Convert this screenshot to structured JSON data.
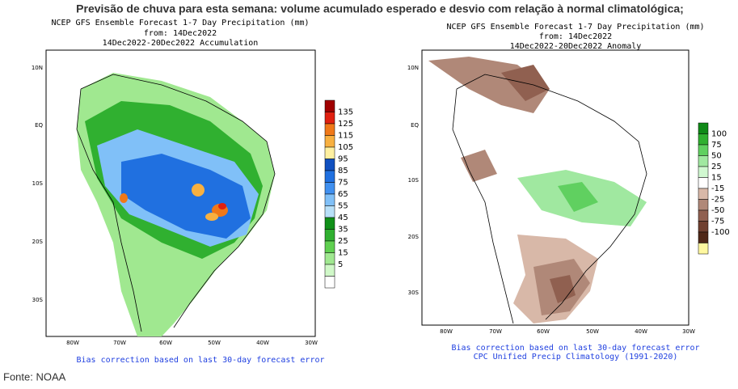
{
  "title": "Previsão de chuva para esta semana: volume acumulado esperado e desvio com relação à normal climatológica;",
  "source": "Fonte: NOAA",
  "maps": [
    {
      "header": [
        "NCEP GFS Ensemble Forecast 1-7 Day Precipitation (mm)",
        "from: 14Dec2022",
        "14Dec2022-20Dec2022 Accumulation"
      ],
      "lat_labels": [
        "10N",
        "EQ",
        "10S",
        "20S",
        "30S"
      ],
      "lon_labels": [
        "80W",
        "70W",
        "60W",
        "50W",
        "40W",
        "30W"
      ],
      "colorbar": {
        "labels": [
          "135",
          "125",
          "115",
          "105",
          "95",
          "85",
          "75",
          "65",
          "55",
          "45",
          "35",
          "25",
          "15",
          "5"
        ],
        "colors": [
          "#a00000",
          "#e02010",
          "#f07818",
          "#f8b040",
          "#fff0a0",
          "#1050c0",
          "#2070e0",
          "#4090f0",
          "#80c0f8",
          "#b8e0f8",
          "#109018",
          "#30b030",
          "#60d050",
          "#a0e890",
          "#d0f8c8",
          "#ffffff"
        ]
      },
      "notes": [
        "Bias correction based on last 30-day forecast error"
      ]
    },
    {
      "header": [
        "NCEP GFS Ensemble Forecast 1-7 Day Precipitation (mm)",
        "from: 14Dec2022",
        "14Dec2022-20Dec2022 Anomaly"
      ],
      "lat_labels": [
        "10N",
        "EQ",
        "10S",
        "20S",
        "30S"
      ],
      "lon_labels": [
        "80W",
        "70W",
        "60W",
        "50W",
        "40W",
        "30W"
      ],
      "colorbar": {
        "labels": [
          "100",
          "75",
          "50",
          "25",
          "15",
          "-15",
          "-25",
          "-50",
          "-75",
          "-100"
        ],
        "colors": [
          "#108a18",
          "#30b030",
          "#60d060",
          "#a0e8a0",
          "#d0f8d0",
          "#ffffff",
          "#d8b8a8",
          "#b08878",
          "#906050",
          "#704030",
          "#502818",
          "#fff8a0"
        ]
      },
      "notes": [
        "Bias correction based on last 30-day forecast error",
        "CPC Unified Precip Climatology (1991-2020)"
      ]
    }
  ]
}
